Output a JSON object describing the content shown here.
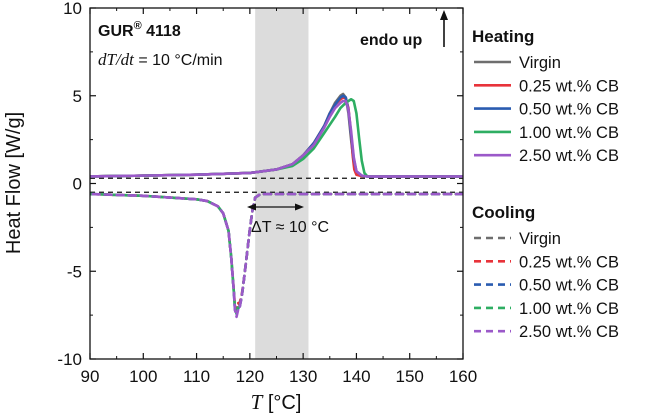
{
  "chart_data": {
    "type": "line",
    "xlabel": "T [°C]",
    "ylabel": "Heat Flow [W/g]",
    "xlim": [
      90,
      160
    ],
    "ylim": [
      -10,
      10
    ],
    "xticks": [
      "90",
      "100",
      "110",
      "120",
      "130",
      "140",
      "150",
      "160"
    ],
    "yticks": [
      "-10",
      "-5",
      "0",
      "5",
      "10"
    ],
    "grid": false,
    "legend_position": "right",
    "annotations": {
      "sample": "GUR® 4118",
      "rate": "dT/dt = 10 °C/min",
      "endo": "endo up",
      "delta": "ΔT ≈ 10 °C"
    },
    "shaded_region": [
      121,
      131
    ],
    "reference_lines_y": [
      0.3,
      -0.5
    ],
    "groups": [
      {
        "name": "Heating",
        "series": [
          {
            "name": "Virgin",
            "color": "#6e6e6e",
            "style": "solid",
            "x": [
              90,
              110,
              120,
              125,
              128,
              130,
              132,
              134,
              135,
              136,
              137,
              137.5,
              138,
              138.5,
              139,
              139.5,
              140,
              141,
              142,
              150,
              160
            ],
            "y": [
              0.4,
              0.5,
              0.6,
              0.8,
              1.1,
              1.6,
              2.3,
              3.3,
              4.0,
              4.6,
              5.0,
              5.1,
              4.9,
              4.0,
              2.5,
              1.2,
              0.6,
              0.45,
              0.4,
              0.4,
              0.4
            ]
          },
          {
            "name": "0.25 wt.% CB",
            "color": "#e8333a",
            "style": "solid",
            "x": [
              90,
              110,
              120,
              125,
              128,
              130,
              132,
              134,
              135,
              136,
              137,
              137.5,
              138,
              138.5,
              139,
              139.3,
              139.6,
              140,
              141,
              150,
              160
            ],
            "y": [
              0.4,
              0.5,
              0.6,
              0.8,
              1.1,
              1.6,
              2.3,
              3.3,
              4.0,
              4.5,
              4.8,
              4.9,
              4.85,
              4.3,
              2.8,
              1.6,
              0.8,
              0.5,
              0.42,
              0.4,
              0.4
            ]
          },
          {
            "name": "0.50 wt.% CB",
            "color": "#2a5cb0",
            "style": "solid",
            "x": [
              90,
              110,
              120,
              125,
              128,
              130,
              132,
              134,
              135,
              136,
              137,
              137.5,
              138,
              138.5,
              139,
              139.5,
              140,
              141,
              142,
              150,
              160
            ],
            "y": [
              0.4,
              0.5,
              0.6,
              0.8,
              1.1,
              1.6,
              2.3,
              3.3,
              4.0,
              4.5,
              4.9,
              5.0,
              4.9,
              4.2,
              2.8,
              1.4,
              0.7,
              0.45,
              0.4,
              0.4,
              0.4
            ]
          },
          {
            "name": "1.00 wt.% CB",
            "color": "#2eae62",
            "style": "solid",
            "x": [
              90,
              110,
              120,
              125,
              128,
              130,
              132,
              134,
              136,
              137,
              138,
              138.5,
              139,
              139.5,
              140,
              140.5,
              141,
              141.5,
              142,
              150,
              160
            ],
            "y": [
              0.4,
              0.5,
              0.6,
              0.8,
              1.0,
              1.4,
              2.0,
              2.9,
              3.8,
              4.3,
              4.6,
              4.7,
              4.8,
              4.7,
              4.0,
              2.6,
              1.3,
              0.6,
              0.42,
              0.4,
              0.4
            ]
          },
          {
            "name": "2.50 wt.% CB",
            "color": "#9b59c9",
            "style": "solid",
            "x": [
              90,
              110,
              120,
              125,
              128,
              130,
              132,
              134,
              135,
              136,
              137,
              137.5,
              138,
              138.5,
              139,
              139.5,
              140,
              141,
              142,
              150,
              160
            ],
            "y": [
              0.4,
              0.5,
              0.6,
              0.8,
              1.1,
              1.6,
              2.2,
              3.2,
              3.8,
              4.3,
              4.6,
              4.7,
              4.7,
              4.2,
              3.0,
              1.5,
              0.7,
              0.45,
              0.4,
              0.4,
              0.4
            ]
          }
        ]
      },
      {
        "name": "Cooling",
        "series": [
          {
            "name": "Virgin",
            "color": "#6e6e6e",
            "style": "dashed",
            "x": [
              160,
              130,
              122,
              121,
              120.5,
              120,
              119.5,
              119,
              118.5,
              118,
              117.8,
              117.5,
              117.2,
              117,
              116.5,
              116,
              115,
              114,
              112,
              110,
              105,
              100,
              90
            ],
            "y": [
              -0.6,
              -0.6,
              -0.6,
              -0.8,
              -1.5,
              -2.6,
              -3.9,
              -5.2,
              -6.4,
              -7.1,
              -7.0,
              -7.4,
              -7.1,
              -6.2,
              -4.2,
              -2.7,
              -1.7,
              -1.3,
              -1.0,
              -0.9,
              -0.8,
              -0.7,
              -0.6
            ]
          },
          {
            "name": "0.25 wt.% CB",
            "color": "#e8333a",
            "style": "dashed",
            "x": [
              160,
              130,
              122,
              121,
              120.5,
              120,
              119.5,
              119,
              118.5,
              118,
              117.8,
              117.5,
              117.2,
              117,
              116.5,
              116,
              115,
              114,
              112,
              110,
              105,
              100,
              90
            ],
            "y": [
              -0.6,
              -0.6,
              -0.6,
              -0.8,
              -1.5,
              -2.6,
              -3.9,
              -5.2,
              -6.3,
              -6.9,
              -6.8,
              -7.2,
              -7.0,
              -6.1,
              -4.2,
              -2.7,
              -1.7,
              -1.3,
              -1.0,
              -0.9,
              -0.8,
              -0.7,
              -0.6
            ]
          },
          {
            "name": "0.50 wt.% CB",
            "color": "#2a5cb0",
            "style": "dashed",
            "x": [
              160,
              130,
              122,
              121,
              120.5,
              120,
              119.5,
              119,
              118.5,
              118,
              117.8,
              117.5,
              117.2,
              117,
              116.5,
              116,
              115,
              114,
              112,
              110,
              105,
              100,
              90
            ],
            "y": [
              -0.6,
              -0.6,
              -0.6,
              -0.8,
              -1.5,
              -2.6,
              -3.9,
              -5.2,
              -6.4,
              -7.2,
              -7.1,
              -7.5,
              -7.2,
              -6.2,
              -4.2,
              -2.7,
              -1.7,
              -1.3,
              -1.0,
              -0.9,
              -0.8,
              -0.7,
              -0.6
            ]
          },
          {
            "name": "1.00 wt.% CB",
            "color": "#2eae62",
            "style": "dashed",
            "x": [
              160,
              130,
              122,
              121,
              120.5,
              120,
              119.5,
              119,
              118.5,
              118,
              117.8,
              117.5,
              117.2,
              117,
              116.5,
              116,
              115,
              114,
              112,
              110,
              105,
              100,
              90
            ],
            "y": [
              -0.6,
              -0.6,
              -0.6,
              -0.8,
              -1.5,
              -2.6,
              -3.9,
              -5.2,
              -6.4,
              -7.1,
              -7.0,
              -7.4,
              -7.1,
              -6.2,
              -4.2,
              -2.7,
              -1.7,
              -1.3,
              -1.0,
              -0.9,
              -0.8,
              -0.7,
              -0.6
            ]
          },
          {
            "name": "2.50 wt.% CB",
            "color": "#9b59c9",
            "style": "dashed",
            "x": [
              160,
              130,
              122,
              121,
              120.5,
              120,
              119.5,
              119,
              118.5,
              118,
              117.8,
              117.5,
              117.2,
              117,
              116.5,
              116,
              115,
              114,
              112,
              110,
              105,
              100,
              90
            ],
            "y": [
              -0.6,
              -0.6,
              -0.6,
              -0.8,
              -1.5,
              -2.6,
              -3.9,
              -5.2,
              -6.4,
              -7.2,
              -7.2,
              -7.6,
              -7.2,
              -6.2,
              -4.2,
              -2.7,
              -1.7,
              -1.3,
              -1.0,
              -0.9,
              -0.8,
              -0.7,
              -0.6
            ]
          }
        ]
      }
    ]
  }
}
